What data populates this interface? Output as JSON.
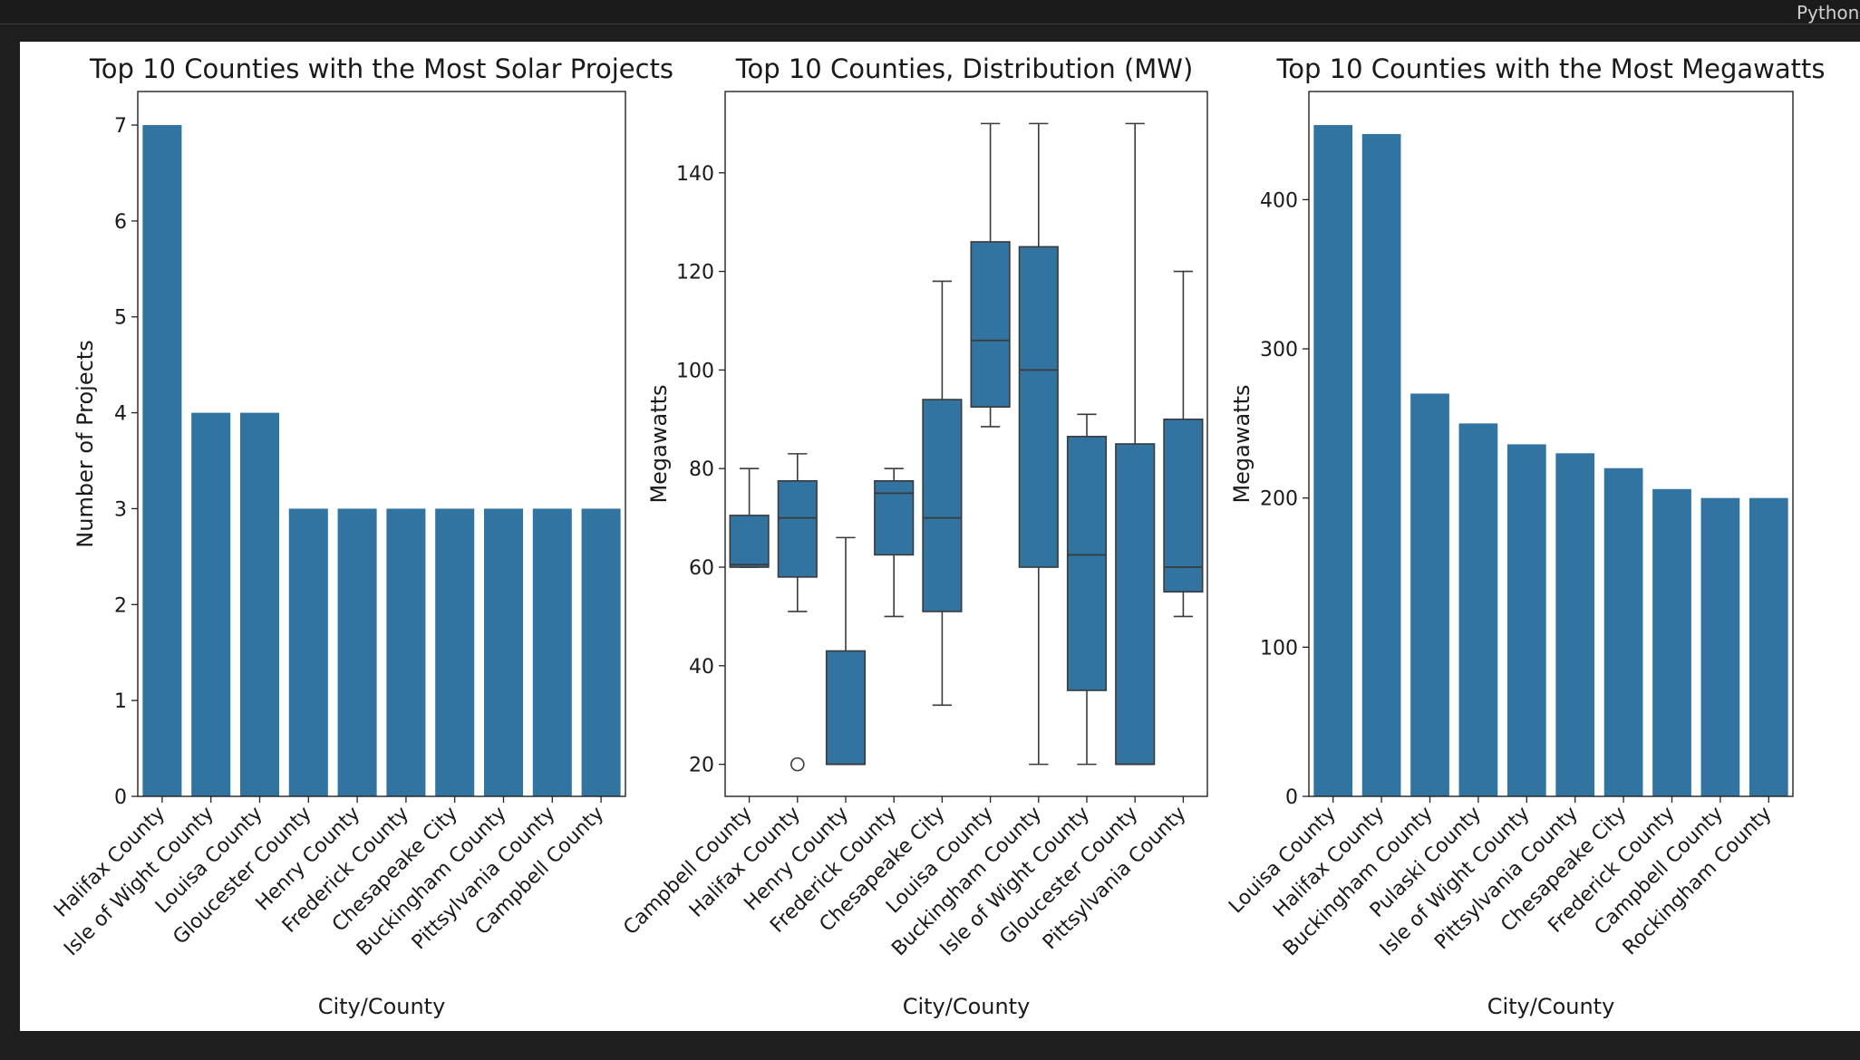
{
  "header": {
    "kernel_label": "Python"
  },
  "chart_data": [
    {
      "type": "bar",
      "title": "Top 10 Counties with the Most Solar Projects",
      "xlabel": "City/County",
      "ylabel": "Number of Projects",
      "ylim": [
        0,
        7.35
      ],
      "yticks": [
        0,
        1,
        2,
        3,
        4,
        5,
        6,
        7
      ],
      "categories": [
        "Halifax County",
        "Isle of Wight County",
        "Louisa County",
        "Gloucester County",
        "Henry County",
        "Frederick County",
        "Chesapeake City",
        "Buckingham County",
        "Pittsylvania County",
        "Campbell County"
      ],
      "values": [
        7,
        4,
        4,
        3,
        3,
        3,
        3,
        3,
        3,
        3
      ],
      "color": "#3274a1",
      "grid": false
    },
    {
      "type": "box",
      "title": "Top 10 Counties, Distribution (MW)",
      "xlabel": "City/County",
      "ylabel": "Megawatts",
      "ylim": [
        13.5,
        156.5
      ],
      "yticks": [
        20,
        40,
        60,
        80,
        100,
        120,
        140
      ],
      "categories": [
        "Campbell County",
        "Halifax County",
        "Henry County",
        "Frederick County",
        "Chesapeake City",
        "Louisa County",
        "Buckingham County",
        "Isle of Wight County",
        "Gloucester County",
        "Pittsylvania County"
      ],
      "boxes": [
        {
          "whisker_low": 60,
          "q1": 60,
          "median": 60.5,
          "q3": 70.5,
          "whisker_high": 80,
          "outliers": []
        },
        {
          "whisker_low": 51,
          "q1": 58,
          "median": 70,
          "q3": 77.5,
          "whisker_high": 83,
          "outliers": [
            20
          ]
        },
        {
          "whisker_low": 20,
          "q1": 20,
          "median": 20,
          "q3": 43,
          "whisker_high": 66,
          "outliers": []
        },
        {
          "whisker_low": 50,
          "q1": 62.5,
          "median": 75,
          "q3": 77.5,
          "whisker_high": 80,
          "outliers": []
        },
        {
          "whisker_low": 32,
          "q1": 51,
          "median": 70,
          "q3": 94,
          "whisker_high": 118,
          "outliers": []
        },
        {
          "whisker_low": 88.5,
          "q1": 92.5,
          "median": 106,
          "q3": 126,
          "whisker_high": 150,
          "outliers": []
        },
        {
          "whisker_low": 20,
          "q1": 60,
          "median": 100,
          "q3": 125,
          "whisker_high": 150,
          "outliers": []
        },
        {
          "whisker_low": 20,
          "q1": 35,
          "median": 62.5,
          "q3": 86.5,
          "whisker_high": 91,
          "outliers": []
        },
        {
          "whisker_low": 20,
          "q1": 20,
          "median": 20,
          "q3": 85,
          "whisker_high": 150,
          "outliers": []
        },
        {
          "whisker_low": 50,
          "q1": 55,
          "median": 60,
          "q3": 90,
          "whisker_high": 120,
          "outliers": []
        }
      ],
      "color": "#3274a1",
      "grid": false
    },
    {
      "type": "bar",
      "title": "Top 10 Counties with the Most Megawatts",
      "xlabel": "City/County",
      "ylabel": "Megawatts",
      "ylim": [
        0,
        472.5
      ],
      "yticks": [
        0,
        100,
        200,
        300,
        400
      ],
      "categories": [
        "Louisa County",
        "Halifax County",
        "Buckingham County",
        "Pulaski County",
        "Isle of Wight County",
        "Pittsylvania County",
        "Chesapeake City",
        "Frederick County",
        "Campbell County",
        "Rockingham County"
      ],
      "values": [
        450,
        444,
        270,
        250,
        236,
        230,
        220,
        206,
        200,
        200
      ],
      "color": "#3274a1",
      "grid": false
    }
  ]
}
